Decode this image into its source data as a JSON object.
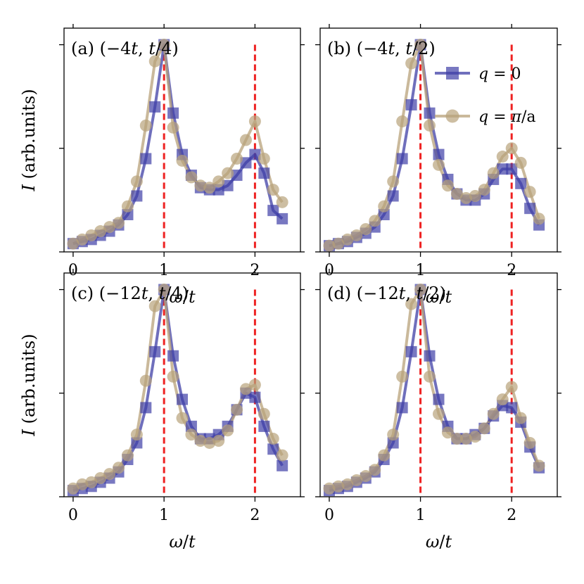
{
  "chart_data": [
    {
      "type": "line",
      "panel": "a",
      "label": "(a) (−4t, t/4)",
      "xlabel": "ω/t",
      "ylabel": "I (arb.units)",
      "xlim": [
        -0.1,
        2.5
      ],
      "ylim": [
        0,
        1.08
      ],
      "xticks": [
        "0",
        "1",
        "2"
      ],
      "reference_lines_x": [
        1,
        2
      ],
      "series": [
        {
          "name": "q = 0",
          "color": "#3f3fa6",
          "marker": "square",
          "x": [
            0,
            0.1,
            0.2,
            0.3,
            0.4,
            0.5,
            0.6,
            0.7,
            0.8,
            0.9,
            1.0,
            1.1,
            1.2,
            1.3,
            1.4,
            1.5,
            1.6,
            1.7,
            1.8,
            1.9,
            2.0,
            2.1,
            2.2,
            2.3
          ],
          "y": [
            0.04,
            0.05,
            0.06,
            0.08,
            0.1,
            0.13,
            0.18,
            0.27,
            0.45,
            0.7,
            1.0,
            0.67,
            0.47,
            0.37,
            0.31,
            0.3,
            0.3,
            0.32,
            0.37,
            0.43,
            0.47,
            0.38,
            0.2,
            0.16
          ]
        },
        {
          "name": "q = π/a",
          "color": "#b8a27a",
          "marker": "circle",
          "x": [
            0,
            0.1,
            0.2,
            0.3,
            0.4,
            0.5,
            0.6,
            0.7,
            0.8,
            0.9,
            1.0,
            1.1,
            1.2,
            1.3,
            1.4,
            1.5,
            1.6,
            1.7,
            1.8,
            1.9,
            2.0,
            2.1,
            2.2,
            2.3
          ],
          "y": [
            0.04,
            0.06,
            0.08,
            0.1,
            0.12,
            0.14,
            0.22,
            0.34,
            0.61,
            0.92,
            1.0,
            0.6,
            0.44,
            0.36,
            0.32,
            0.31,
            0.34,
            0.38,
            0.45,
            0.54,
            0.63,
            0.45,
            0.3,
            0.24
          ]
        }
      ]
    },
    {
      "type": "line",
      "panel": "b",
      "label": "(b) (−4t, t/2)",
      "xlabel": "ω/t",
      "ylabel": "",
      "xlim": [
        -0.1,
        2.5
      ],
      "ylim": [
        0,
        1.08
      ],
      "xticks": [
        "0",
        "1",
        "2"
      ],
      "reference_lines_x": [
        1,
        2
      ],
      "series": [
        {
          "name": "q = 0",
          "color": "#3f3fa6",
          "marker": "square",
          "x": [
            0,
            0.1,
            0.2,
            0.3,
            0.4,
            0.5,
            0.6,
            0.7,
            0.8,
            0.9,
            1.0,
            1.1,
            1.2,
            1.3,
            1.4,
            1.5,
            1.6,
            1.7,
            1.8,
            1.9,
            2.0,
            2.1,
            2.2,
            2.3
          ],
          "y": [
            0.03,
            0.04,
            0.05,
            0.07,
            0.09,
            0.12,
            0.18,
            0.27,
            0.45,
            0.71,
            1.0,
            0.67,
            0.47,
            0.35,
            0.28,
            0.25,
            0.25,
            0.28,
            0.35,
            0.4,
            0.4,
            0.33,
            0.21,
            0.13
          ]
        },
        {
          "name": "q = π/a",
          "color": "#b8a27a",
          "marker": "circle",
          "x": [
            0,
            0.1,
            0.2,
            0.3,
            0.4,
            0.5,
            0.6,
            0.7,
            0.8,
            0.9,
            1.0,
            1.1,
            1.2,
            1.3,
            1.4,
            1.5,
            1.6,
            1.7,
            1.8,
            1.9,
            2.0,
            2.1,
            2.2,
            2.3
          ],
          "y": [
            0.03,
            0.04,
            0.06,
            0.08,
            0.11,
            0.15,
            0.22,
            0.34,
            0.63,
            0.91,
            1.0,
            0.61,
            0.42,
            0.32,
            0.28,
            0.26,
            0.27,
            0.3,
            0.38,
            0.46,
            0.5,
            0.43,
            0.29,
            0.16
          ]
        }
      ]
    },
    {
      "type": "line",
      "panel": "c",
      "label": "(c) (−12t, t/4)",
      "xlabel": "ω/t",
      "ylabel": "I (arb.units)",
      "xlim": [
        -0.1,
        2.5
      ],
      "ylim": [
        0,
        1.08
      ],
      "xticks": [
        "0",
        "1",
        "2"
      ],
      "reference_lines_x": [
        1,
        2
      ],
      "series": [
        {
          "name": "q = 0",
          "color": "#3f3fa6",
          "marker": "square",
          "x": [
            0,
            0.1,
            0.2,
            0.3,
            0.4,
            0.5,
            0.6,
            0.7,
            0.8,
            0.9,
            1.0,
            1.1,
            1.2,
            1.3,
            1.4,
            1.5,
            1.6,
            1.7,
            1.8,
            1.9,
            2.0,
            2.1,
            2.2,
            2.3
          ],
          "y": [
            0.03,
            0.04,
            0.05,
            0.07,
            0.09,
            0.12,
            0.18,
            0.26,
            0.43,
            0.7,
            1.0,
            0.68,
            0.47,
            0.34,
            0.28,
            0.28,
            0.3,
            0.34,
            0.42,
            0.5,
            0.48,
            0.34,
            0.23,
            0.15
          ]
        },
        {
          "name": "q = π/a",
          "color": "#b8a27a",
          "marker": "circle",
          "x": [
            0,
            0.1,
            0.2,
            0.3,
            0.4,
            0.5,
            0.6,
            0.7,
            0.8,
            0.9,
            1.0,
            1.1,
            1.2,
            1.3,
            1.4,
            1.5,
            1.6,
            1.7,
            1.8,
            1.9,
            2.0,
            2.1,
            2.2,
            2.3
          ],
          "y": [
            0.04,
            0.06,
            0.07,
            0.09,
            0.11,
            0.14,
            0.2,
            0.3,
            0.56,
            0.92,
            1.0,
            0.58,
            0.38,
            0.3,
            0.27,
            0.26,
            0.27,
            0.32,
            0.42,
            0.52,
            0.54,
            0.4,
            0.28,
            0.2
          ]
        }
      ]
    },
    {
      "type": "line",
      "panel": "d",
      "label": "(d) (−12t, t/2)",
      "xlabel": "ω/t",
      "ylabel": "",
      "xlim": [
        -0.1,
        2.5
      ],
      "ylim": [
        0,
        1.08
      ],
      "xticks": [
        "0",
        "1",
        "2"
      ],
      "reference_lines_x": [
        1,
        2
      ],
      "series": [
        {
          "name": "q = 0",
          "color": "#3f3fa6",
          "marker": "square",
          "x": [
            0,
            0.1,
            0.2,
            0.3,
            0.4,
            0.5,
            0.6,
            0.7,
            0.8,
            0.9,
            1.0,
            1.1,
            1.2,
            1.3,
            1.4,
            1.5,
            1.6,
            1.7,
            1.8,
            1.9,
            2.0,
            2.1,
            2.2,
            2.3
          ],
          "y": [
            0.03,
            0.04,
            0.05,
            0.07,
            0.09,
            0.12,
            0.18,
            0.26,
            0.43,
            0.7,
            1.0,
            0.68,
            0.47,
            0.34,
            0.28,
            0.28,
            0.3,
            0.33,
            0.39,
            0.44,
            0.43,
            0.36,
            0.24,
            0.14
          ]
        },
        {
          "name": "q = π/a",
          "color": "#b8a27a",
          "marker": "circle",
          "x": [
            0,
            0.1,
            0.2,
            0.3,
            0.4,
            0.5,
            0.6,
            0.7,
            0.8,
            0.9,
            1.0,
            1.1,
            1.2,
            1.3,
            1.4,
            1.5,
            1.6,
            1.7,
            1.8,
            1.9,
            2.0,
            2.1,
            2.2,
            2.3
          ],
          "y": [
            0.04,
            0.05,
            0.06,
            0.08,
            0.1,
            0.13,
            0.2,
            0.3,
            0.58,
            0.93,
            1.0,
            0.58,
            0.4,
            0.31,
            0.28,
            0.28,
            0.29,
            0.33,
            0.4,
            0.47,
            0.53,
            0.38,
            0.26,
            0.15
          ]
        }
      ]
    }
  ],
  "legend": {
    "location": "top-right of panel (b)",
    "entries": [
      "q = 0",
      "q = π/a"
    ]
  },
  "colors": {
    "q0": "#3f3fa6",
    "qpi": "#b8a27a",
    "reference_line": "#ee2222"
  }
}
